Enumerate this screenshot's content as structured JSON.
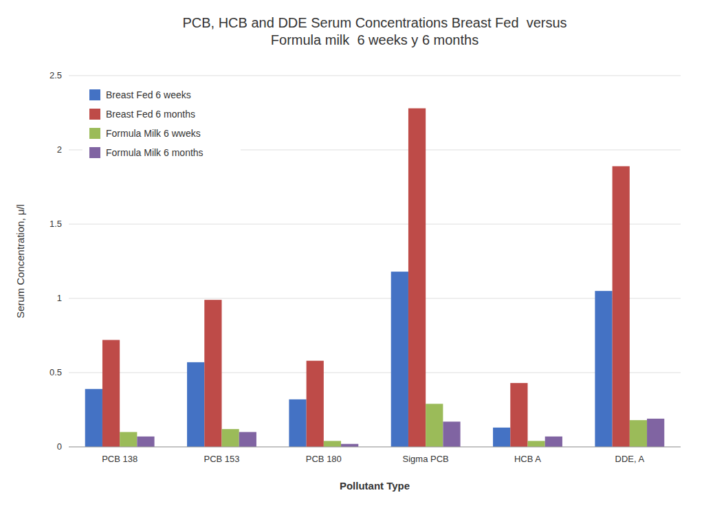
{
  "chart_data": {
    "type": "bar",
    "title": "PCB, HCB and DDE Serum Concentrations Breast Fed  versus\nFormula milk  6 weeks y 6 months",
    "x_label": "Pollutant Type",
    "y_label": "Serum Concentration, μ/l",
    "categories": [
      "PCB 138",
      "PCB 153",
      "PCB 180",
      "Sigma PCB",
      "HCB A",
      "DDE, A"
    ],
    "series": [
      {
        "name": "Breast Fed 6 weeks",
        "color": "#4472C4",
        "values": [
          0.39,
          0.57,
          0.32,
          1.18,
          0.13,
          1.05
        ]
      },
      {
        "name": "Breast Fed 6 months",
        "color": "#BE4B48",
        "values": [
          0.72,
          0.99,
          0.58,
          2.28,
          0.43,
          1.89
        ]
      },
      {
        "name": "Formula Milk 6 wweks",
        "color": "#9BBB59",
        "values": [
          0.1,
          0.12,
          0.04,
          0.29,
          0.04,
          0.18
        ]
      },
      {
        "name": "Formula Milk 6 months",
        "color": "#8064A2",
        "values": [
          0.07,
          0.1,
          0.02,
          0.17,
          0.07,
          0.19
        ]
      }
    ],
    "ylim": [
      0,
      2.5
    ],
    "yticks": [
      0,
      0.5,
      1,
      1.5,
      2,
      2.5
    ],
    "grid": true,
    "legend": "upper left"
  }
}
